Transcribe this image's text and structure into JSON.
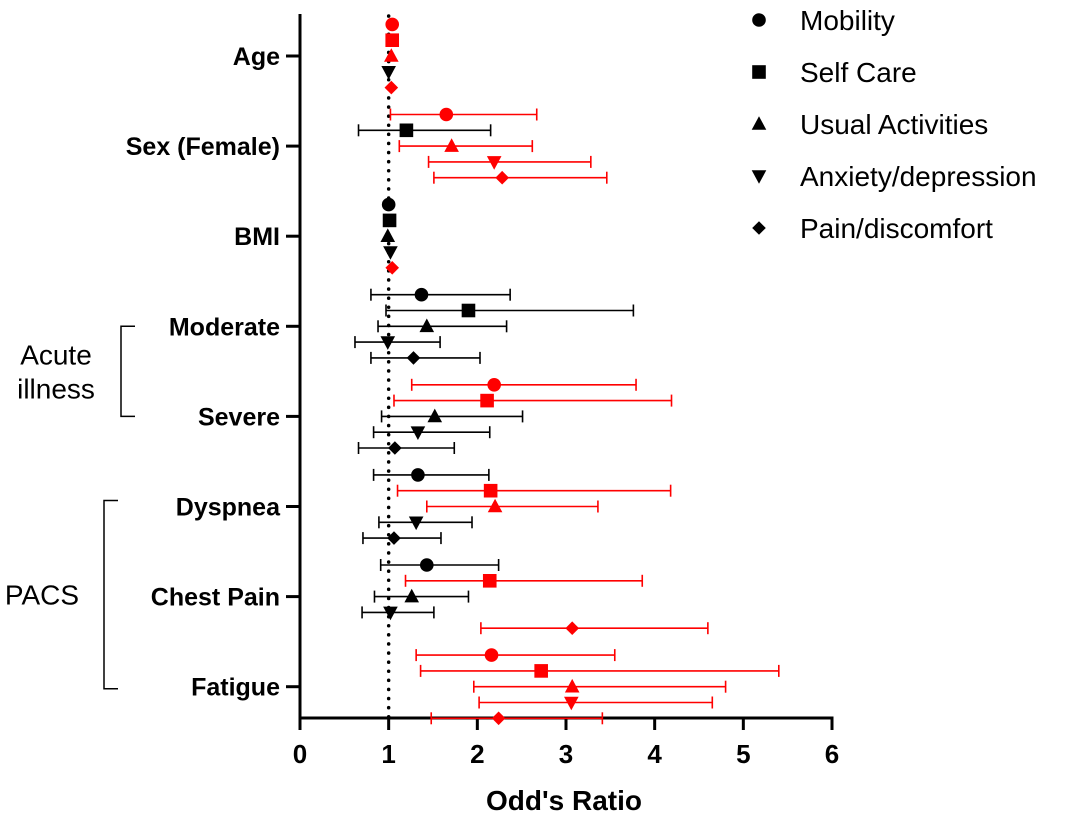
{
  "chart_data": {
    "type": "scatter",
    "subtype": "forest-plot",
    "xlabel": "Odd's Ratio",
    "xlim": [
      0,
      6
    ],
    "xticks": [
      0,
      1,
      2,
      3,
      4,
      5,
      6
    ],
    "reference_line": 1,
    "legend_position": "top-right",
    "colors": {
      "significant": "#ff0000",
      "nonsignificant": "#000000"
    },
    "categories": [
      "Age",
      "Sex (Female)",
      "BMI",
      "Moderate",
      "Severe",
      "Dyspnea",
      "Chest Pain",
      "Fatigue"
    ],
    "groups": [
      {
        "label_lines": [
          "Acute",
          "illness"
        ],
        "categories": [
          "Moderate",
          "Severe"
        ]
      },
      {
        "label_lines": [
          "PACS"
        ],
        "categories": [
          "Dyspnea",
          "Chest Pain",
          "Fatigue"
        ]
      }
    ],
    "series": [
      {
        "name": "Mobility",
        "marker": "circle",
        "points": [
          {
            "category": "Age",
            "or": 1.04,
            "lo": 1.04,
            "hi": 1.04,
            "significant": true
          },
          {
            "category": "Sex (Female)",
            "or": 1.65,
            "lo": 1.02,
            "hi": 2.67,
            "significant": true
          },
          {
            "category": "BMI",
            "or": 1.0,
            "lo": 1.0,
            "hi": 1.0,
            "significant": false
          },
          {
            "category": "Moderate",
            "or": 1.37,
            "lo": 0.8,
            "hi": 2.37,
            "significant": false
          },
          {
            "category": "Severe",
            "or": 2.19,
            "lo": 1.26,
            "hi": 3.79,
            "significant": true
          },
          {
            "category": "Dyspnea",
            "or": 1.33,
            "lo": 0.83,
            "hi": 2.13,
            "significant": false
          },
          {
            "category": "Chest Pain",
            "or": 1.43,
            "lo": 0.91,
            "hi": 2.24,
            "significant": false
          },
          {
            "category": "Fatigue",
            "or": 2.16,
            "lo": 1.31,
            "hi": 3.55,
            "significant": true
          }
        ]
      },
      {
        "name": "Self Care",
        "marker": "square",
        "points": [
          {
            "category": "Age",
            "or": 1.04,
            "lo": 1.04,
            "hi": 1.04,
            "significant": true
          },
          {
            "category": "Sex (Female)",
            "or": 1.2,
            "lo": 0.66,
            "hi": 2.15,
            "significant": false
          },
          {
            "category": "BMI",
            "or": 1.01,
            "lo": 1.01,
            "hi": 1.01,
            "significant": false
          },
          {
            "category": "Moderate",
            "or": 1.9,
            "lo": 0.97,
            "hi": 3.76,
            "significant": false
          },
          {
            "category": "Severe",
            "or": 2.11,
            "lo": 1.06,
            "hi": 4.19,
            "significant": true
          },
          {
            "category": "Dyspnea",
            "or": 2.15,
            "lo": 1.1,
            "hi": 4.18,
            "significant": true
          },
          {
            "category": "Chest Pain",
            "or": 2.14,
            "lo": 1.19,
            "hi": 3.86,
            "significant": true
          },
          {
            "category": "Fatigue",
            "or": 2.72,
            "lo": 1.36,
            "hi": 5.4,
            "significant": true
          }
        ]
      },
      {
        "name": "Usual Activities",
        "marker": "triangle-up",
        "points": [
          {
            "category": "Age",
            "or": 1.03,
            "lo": 1.03,
            "hi": 1.03,
            "significant": true
          },
          {
            "category": "Sex (Female)",
            "or": 1.71,
            "lo": 1.12,
            "hi": 2.62,
            "significant": true
          },
          {
            "category": "BMI",
            "or": 0.99,
            "lo": 0.99,
            "hi": 0.99,
            "significant": false
          },
          {
            "category": "Moderate",
            "or": 1.43,
            "lo": 0.88,
            "hi": 2.33,
            "significant": false
          },
          {
            "category": "Severe",
            "or": 1.52,
            "lo": 0.92,
            "hi": 2.51,
            "significant": false
          },
          {
            "category": "Dyspnea",
            "or": 2.2,
            "lo": 1.43,
            "hi": 3.36,
            "significant": true
          },
          {
            "category": "Chest Pain",
            "or": 1.26,
            "lo": 0.84,
            "hi": 1.9,
            "significant": false
          },
          {
            "category": "Fatigue",
            "or": 3.07,
            "lo": 1.96,
            "hi": 4.8,
            "significant": true
          }
        ]
      },
      {
        "name": "Anxiety/depression",
        "marker": "triangle-down",
        "points": [
          {
            "category": "Age",
            "or": 1.0,
            "lo": 1.0,
            "hi": 1.0,
            "significant": false
          },
          {
            "category": "Sex (Female)",
            "or": 2.19,
            "lo": 1.45,
            "hi": 3.28,
            "significant": true
          },
          {
            "category": "BMI",
            "or": 1.02,
            "lo": 1.02,
            "hi": 1.02,
            "significant": false
          },
          {
            "category": "Moderate",
            "or": 0.99,
            "lo": 0.62,
            "hi": 1.58,
            "significant": false
          },
          {
            "category": "Severe",
            "or": 1.33,
            "lo": 0.83,
            "hi": 2.14,
            "significant": false
          },
          {
            "category": "Dyspnea",
            "or": 1.31,
            "lo": 0.89,
            "hi": 1.94,
            "significant": false
          },
          {
            "category": "Chest Pain",
            "or": 1.02,
            "lo": 0.7,
            "hi": 1.51,
            "significant": false
          },
          {
            "category": "Fatigue",
            "or": 3.06,
            "lo": 2.02,
            "hi": 4.65,
            "significant": true
          }
        ]
      },
      {
        "name": "Pain/discomfort",
        "marker": "diamond",
        "points": [
          {
            "category": "Age",
            "or": 1.03,
            "lo": 1.03,
            "hi": 1.03,
            "significant": true
          },
          {
            "category": "Sex (Female)",
            "or": 2.28,
            "lo": 1.51,
            "hi": 3.46,
            "significant": true
          },
          {
            "category": "BMI",
            "or": 1.04,
            "lo": 1.04,
            "hi": 1.04,
            "significant": true
          },
          {
            "category": "Moderate",
            "or": 1.28,
            "lo": 0.8,
            "hi": 2.03,
            "significant": false
          },
          {
            "category": "Severe",
            "or": 1.07,
            "lo": 0.66,
            "hi": 1.74,
            "significant": false
          },
          {
            "category": "Dyspnea",
            "or": 1.06,
            "lo": 0.71,
            "hi": 1.59,
            "significant": false
          },
          {
            "category": "Chest Pain",
            "or": 3.07,
            "lo": 2.04,
            "hi": 4.6,
            "significant": true
          },
          {
            "category": "Fatigue",
            "or": 2.24,
            "lo": 1.48,
            "hi": 3.41,
            "significant": true
          }
        ]
      }
    ]
  }
}
